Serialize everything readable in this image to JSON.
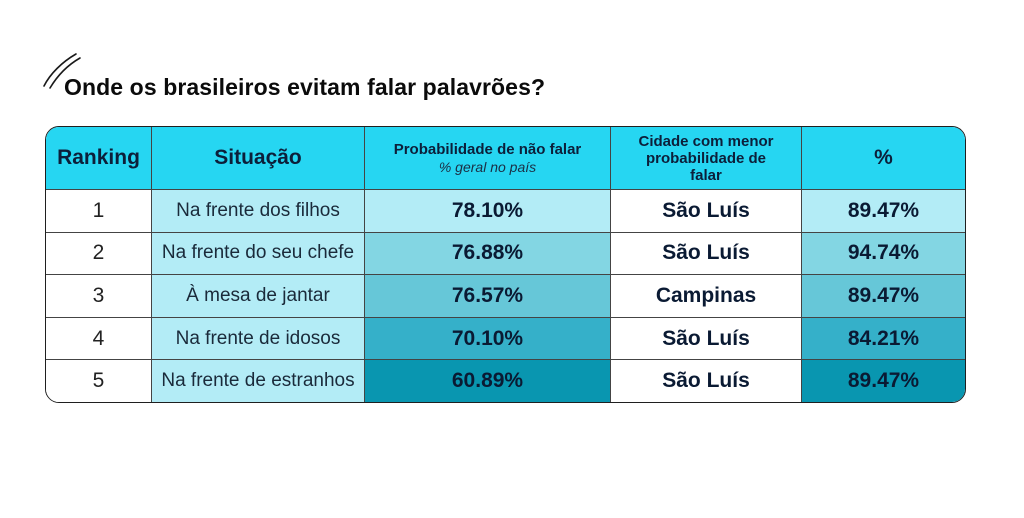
{
  "title": "Onde os brasileiros evitam falar palavrões?",
  "chart_data": {
    "type": "table",
    "columns": [
      {
        "label": "Ranking"
      },
      {
        "label": "Situação"
      },
      {
        "label": "Probabilidade de não falar",
        "sub": "% geral no país"
      },
      {
        "label": "Cidade com menor probabilidade de falar"
      },
      {
        "label": "%"
      }
    ],
    "rows": [
      {
        "rank": "1",
        "situation": "Na frente dos filhos",
        "national": "78.10%",
        "city": "São Luís",
        "city_pct": "89.47%"
      },
      {
        "rank": "2",
        "situation": "Na frente do seu chefe",
        "national": "76.88%",
        "city": "São Luís",
        "city_pct": "94.74%"
      },
      {
        "rank": "3",
        "situation": "À mesa de jantar",
        "national": "76.57%",
        "city": "Campinas",
        "city_pct": "89.47%"
      },
      {
        "rank": "4",
        "situation": "Na frente de idosos",
        "national": "70.10%",
        "city": "São Luís",
        "city_pct": "84.21%"
      },
      {
        "rank": "5",
        "situation": "Na frente de estranhos",
        "national": "60.89%",
        "city": "São Luís",
        "city_pct": "89.47%"
      }
    ],
    "colors": {
      "header": "#26d6f2",
      "shade_scale": [
        "#b3ecf6",
        "#83d6e3",
        "#66c7d8",
        "#35b0c9",
        "#0996b0"
      ],
      "situation_bg": "#b3ecf6"
    }
  }
}
